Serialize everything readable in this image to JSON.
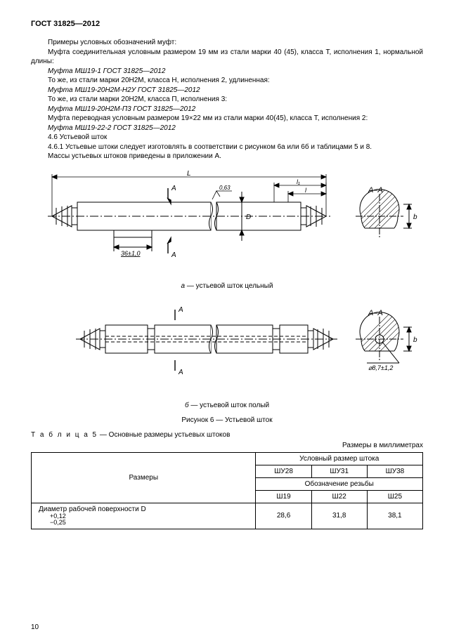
{
  "header": "ГОСТ 31825—2012",
  "text_block": [
    {
      "cls": "indent",
      "t": "Примеры условных обозначений муфт:"
    },
    {
      "cls": "indent",
      "t": "Муфта соединительная условным размером 19 мм из стали марки 40 (45), класса Т, исполнения 1, нормальной длины:"
    },
    {
      "cls": "indent italic",
      "t": "Муфта МШ19-1 ГОСТ 31825—2012"
    },
    {
      "cls": "indent",
      "t": "То же, из стали марки 20Н2М, класса Н, исполнения 2, удлиненная:"
    },
    {
      "cls": "indent italic",
      "t": "Муфта МШ19-20Н2М-Н2У ГОСТ 31825—2012"
    },
    {
      "cls": "indent",
      "t": "То же, из стали марки 20Н2М, класса П, исполнения 3:"
    },
    {
      "cls": "indent italic",
      "t": "Муфта МШ19-20Н2М-П3 ГОСТ 31825—2012"
    },
    {
      "cls": "indent",
      "t": "Муфта переводная условным размером 19×22 мм из стали марки 40(45), класса Т, исполнения 2:"
    },
    {
      "cls": "indent italic",
      "t": "Муфта МШ19-22-2 ГОСТ 31825—2012"
    },
    {
      "cls": "indent",
      "t": "4.6 Устьевой шток"
    },
    {
      "cls": "indent",
      "t": "4.6.1 Устьевые штоки следует изготовлять в соответствии с рисунком 6а или 6б и таблицами 5 и 8."
    },
    {
      "cls": "indent",
      "t": "Массы устьевых штоков приведены в приложении А."
    }
  ],
  "fig_a": {
    "L_label": "L",
    "l1_label": "l₁",
    "l_label": "l",
    "surface_val": "0,63",
    "dim_flat": "36±1,0",
    "D_label": "D",
    "b_label": "b",
    "sec_label": "А–А",
    "sec_mark": "А",
    "caption_letter": "а",
    "caption_text": "— устьевой шток цельный",
    "colors": {
      "stroke": "#000000",
      "hatch": "#000000",
      "bg": "#ffffff"
    }
  },
  "fig_b": {
    "sec_label": "А–А",
    "sec_mark": "А",
    "b_label": "b",
    "hole_dim": "⌀8,7±1,2",
    "caption_letter": "б",
    "caption_text": "— устьевой шток полый",
    "main_caption": "Рисунок 6 — Устьевой шток",
    "colors": {
      "stroke": "#000000",
      "hatch": "#000000",
      "bg": "#ffffff"
    }
  },
  "table": {
    "title_prefix": "Т а б л и ц а  5",
    "title_rest": "— Основные размеры устьевых штоков",
    "units": "Размеры в миллиметрах",
    "headers": {
      "col_sizes": "Размеры",
      "group": "Условный размер штока",
      "shu": [
        "ШУ28",
        "ШУ31",
        "ШУ38"
      ],
      "thread_label": "Обозначение резьбы",
      "sh": [
        "Ш19",
        "Ш22",
        "Ш25"
      ]
    },
    "row": {
      "label": "Диаметр рабочей поверхности D",
      "tol_up": "+0,12",
      "tol_dn": "−0,25",
      "vals": [
        "28,6",
        "31,8",
        "38,1"
      ]
    }
  },
  "page_number": "10"
}
